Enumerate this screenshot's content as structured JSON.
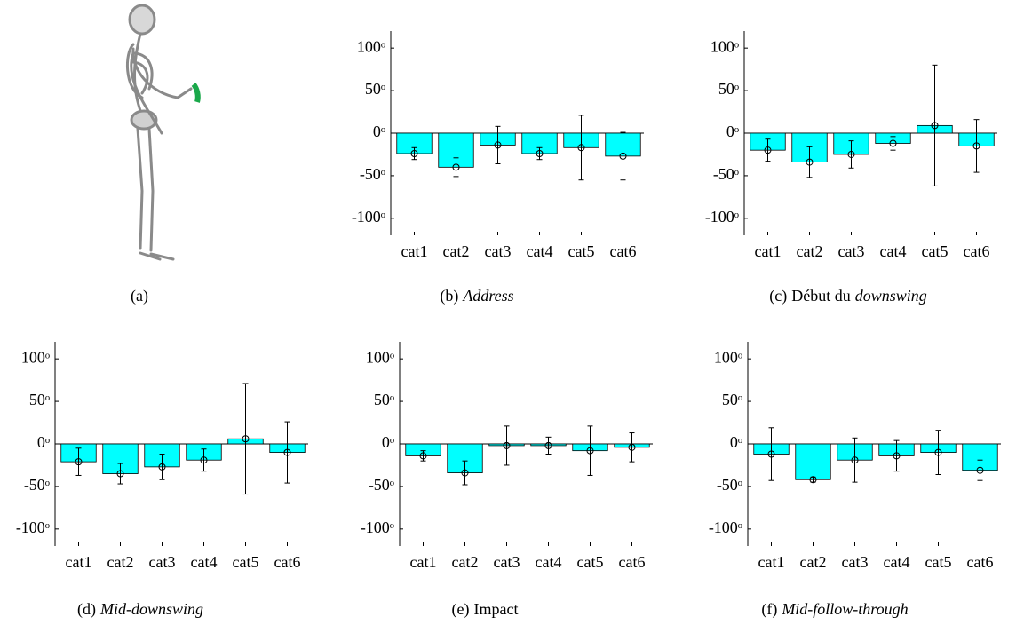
{
  "panel_a": {
    "caption": "(a)"
  },
  "chart_data": [
    {
      "type": "bar",
      "caption_label": "(b)",
      "caption_parts": [
        {
          "text": "Address",
          "italic": true
        }
      ],
      "categories": [
        "cat1",
        "cat2",
        "cat3",
        "cat4",
        "cat5",
        "cat6"
      ],
      "series": [
        {
          "color": "#00ffff",
          "values": [
            -24,
            -40,
            -14,
            -24,
            -17,
            -27
          ],
          "errors": [
            7,
            11,
            22,
            7,
            38,
            28
          ]
        }
      ],
      "ylim": [
        -120,
        120
      ],
      "yticks": [
        {
          "value": 100,
          "label": "100ᵒ"
        },
        {
          "value": 50,
          "label": "50ᵒ"
        },
        {
          "value": 0,
          "label": "0ᵒ"
        },
        {
          "value": -50,
          "label": "-50ᵒ"
        },
        {
          "value": -100,
          "label": "-100ᵒ"
        }
      ]
    },
    {
      "type": "bar",
      "caption_label": "(c)",
      "caption_parts": [
        {
          "text": "Début du",
          "italic": false
        },
        {
          "text": "downswing",
          "italic": true
        }
      ],
      "categories": [
        "cat1",
        "cat2",
        "cat3",
        "cat4",
        "cat5",
        "cat6"
      ],
      "series": [
        {
          "color": "#00ffff",
          "values": [
            -20,
            -34,
            -25,
            -12,
            9,
            -15
          ],
          "errors": [
            13,
            18,
            16,
            8,
            71,
            31
          ]
        }
      ],
      "ylim": [
        -120,
        120
      ],
      "yticks": [
        {
          "value": 100,
          "label": "100ᵒ"
        },
        {
          "value": 50,
          "label": "50ᵒ"
        },
        {
          "value": 0,
          "label": "0ᵒ"
        },
        {
          "value": -50,
          "label": "-50ᵒ"
        },
        {
          "value": -100,
          "label": "-100ᵒ"
        }
      ]
    },
    {
      "type": "bar",
      "caption_label": "(d)",
      "caption_parts": [
        {
          "text": "Mid-downswing",
          "italic": true
        }
      ],
      "categories": [
        "cat1",
        "cat2",
        "cat3",
        "cat4",
        "cat5",
        "cat6"
      ],
      "series": [
        {
          "color": "#00ffff",
          "values": [
            -21,
            -35,
            -27,
            -19,
            6,
            -10
          ],
          "errors": [
            16,
            12,
            15,
            13,
            65,
            36
          ]
        }
      ],
      "ylim": [
        -120,
        120
      ],
      "yticks": [
        {
          "value": 100,
          "label": "100ᵒ"
        },
        {
          "value": 50,
          "label": "50ᵒ"
        },
        {
          "value": 0,
          "label": "0ᵒ"
        },
        {
          "value": -50,
          "label": "-50ᵒ"
        },
        {
          "value": -100,
          "label": "-100ᵒ"
        }
      ]
    },
    {
      "type": "bar",
      "caption_label": "(e)",
      "caption_parts": [
        {
          "text": "Impact",
          "italic": false
        }
      ],
      "categories": [
        "cat1",
        "cat2",
        "cat3",
        "cat4",
        "cat5",
        "cat6"
      ],
      "series": [
        {
          "color": "#00ffff",
          "values": [
            -14,
            -34,
            -2,
            -2,
            -8,
            -4
          ],
          "errors": [
            6,
            14,
            23,
            10,
            29,
            17
          ]
        }
      ],
      "ylim": [
        -120,
        120
      ],
      "yticks": [
        {
          "value": 100,
          "label": "100ᵒ"
        },
        {
          "value": 50,
          "label": "50ᵒ"
        },
        {
          "value": 0,
          "label": "0ᵒ"
        },
        {
          "value": -50,
          "label": "-50ᵒ"
        },
        {
          "value": -100,
          "label": "-100ᵒ"
        }
      ]
    },
    {
      "type": "bar",
      "caption_label": "(f)",
      "caption_parts": [
        {
          "text": "Mid-follow-through",
          "italic": true
        }
      ],
      "categories": [
        "cat1",
        "cat2",
        "cat3",
        "cat4",
        "cat5",
        "cat6"
      ],
      "series": [
        {
          "color": "#00ffff",
          "values": [
            -12,
            -42,
            -19,
            -14,
            -10,
            -31
          ],
          "errors": [
            31,
            3,
            26,
            18,
            26,
            12
          ]
        }
      ],
      "ylim": [
        -120,
        120
      ],
      "yticks": [
        {
          "value": 100,
          "label": "100ᵒ"
        },
        {
          "value": 50,
          "label": "50ᵒ"
        },
        {
          "value": 0,
          "label": "0ᵒ"
        },
        {
          "value": -50,
          "label": "-50ᵒ"
        },
        {
          "value": -100,
          "label": "-100ᵒ"
        }
      ]
    }
  ]
}
